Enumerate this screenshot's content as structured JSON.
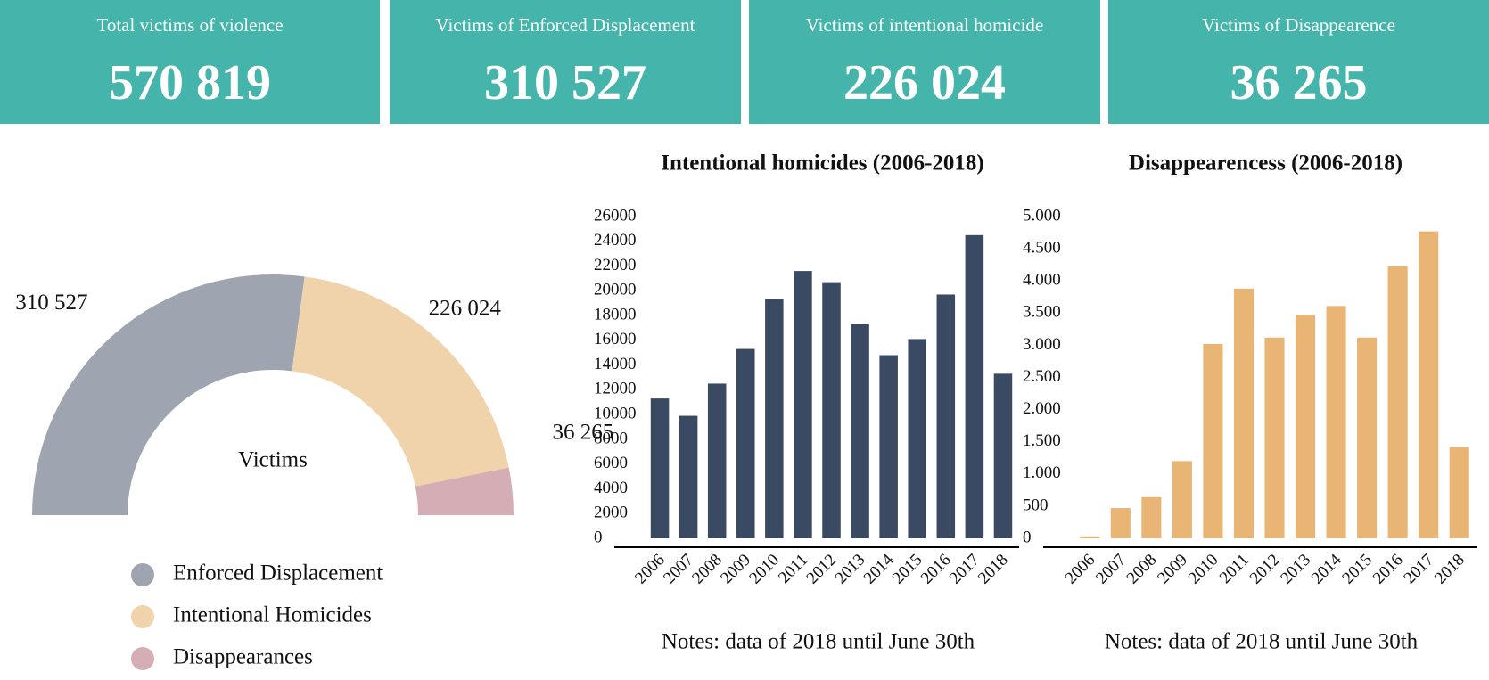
{
  "cards": [
    {
      "title": "Total victims of violence",
      "value": "570 819"
    },
    {
      "title": "Victims of Enforced Displacement",
      "value": "310 527"
    },
    {
      "title": "Victims of intentional homicide",
      "value": "226 024"
    },
    {
      "title": "Victims of Disappearence",
      "value": "36 265"
    }
  ],
  "chart_data": [
    {
      "type": "halfdonut",
      "center_label": "Victims",
      "categories": [
        "Enforced Displacement",
        "Intentional Homicides",
        "Disappearances"
      ],
      "values": [
        310527,
        226024,
        36265
      ],
      "value_labels": [
        "310 527",
        "226 024",
        "36 265"
      ],
      "colors": [
        "#9ea5b1",
        "#f0d2ab",
        "#d5adb5"
      ]
    },
    {
      "type": "bar",
      "title": "Intentional homicides (2006-2018)",
      "categories": [
        "2006",
        "2007",
        "2008",
        "2009",
        "2010",
        "2011",
        "2012",
        "2013",
        "2014",
        "2015",
        "2016",
        "2017",
        "2018"
      ],
      "values": [
        11300,
        9900,
        12500,
        15300,
        19300,
        21600,
        20700,
        17300,
        14800,
        16100,
        19700,
        24500,
        13300
      ],
      "color": "#3a4a63",
      "ylim": [
        0,
        26000
      ],
      "yticks": [
        0,
        2000,
        4000,
        6000,
        8000,
        10000,
        12000,
        14000,
        16000,
        18000,
        20000,
        22000,
        24000,
        26000
      ],
      "note": "Notes: data of 2018 until June 30th"
    },
    {
      "type": "bar",
      "title": "Disappearencess (2006-2018)",
      "categories": [
        "2006",
        "2007",
        "2008",
        "2009",
        "2010",
        "2011",
        "2012",
        "2013",
        "2014",
        "2015",
        "2016",
        "2017",
        "2018"
      ],
      "values": [
        30,
        470,
        640,
        1200,
        3020,
        3880,
        3120,
        3470,
        3610,
        3120,
        4230,
        4770,
        1420
      ],
      "color": "#e8b574",
      "ylim": [
        0,
        5000
      ],
      "yticks": [
        0,
        500,
        {
          "value": 1000,
          "label": "1.000"
        },
        {
          "value": 1500,
          "label": "1.500"
        },
        {
          "value": 2000,
          "label": "2.000"
        },
        {
          "value": 2500,
          "label": "2.500"
        },
        {
          "value": 3000,
          "label": "3.000"
        },
        {
          "value": 3500,
          "label": "3.500"
        },
        {
          "value": 4000,
          "label": "4.000"
        },
        {
          "value": 4500,
          "label": "4.500"
        },
        {
          "value": 5000,
          "label": "5.000"
        }
      ],
      "note": "Notes: data of 2018 until June 30th"
    }
  ]
}
